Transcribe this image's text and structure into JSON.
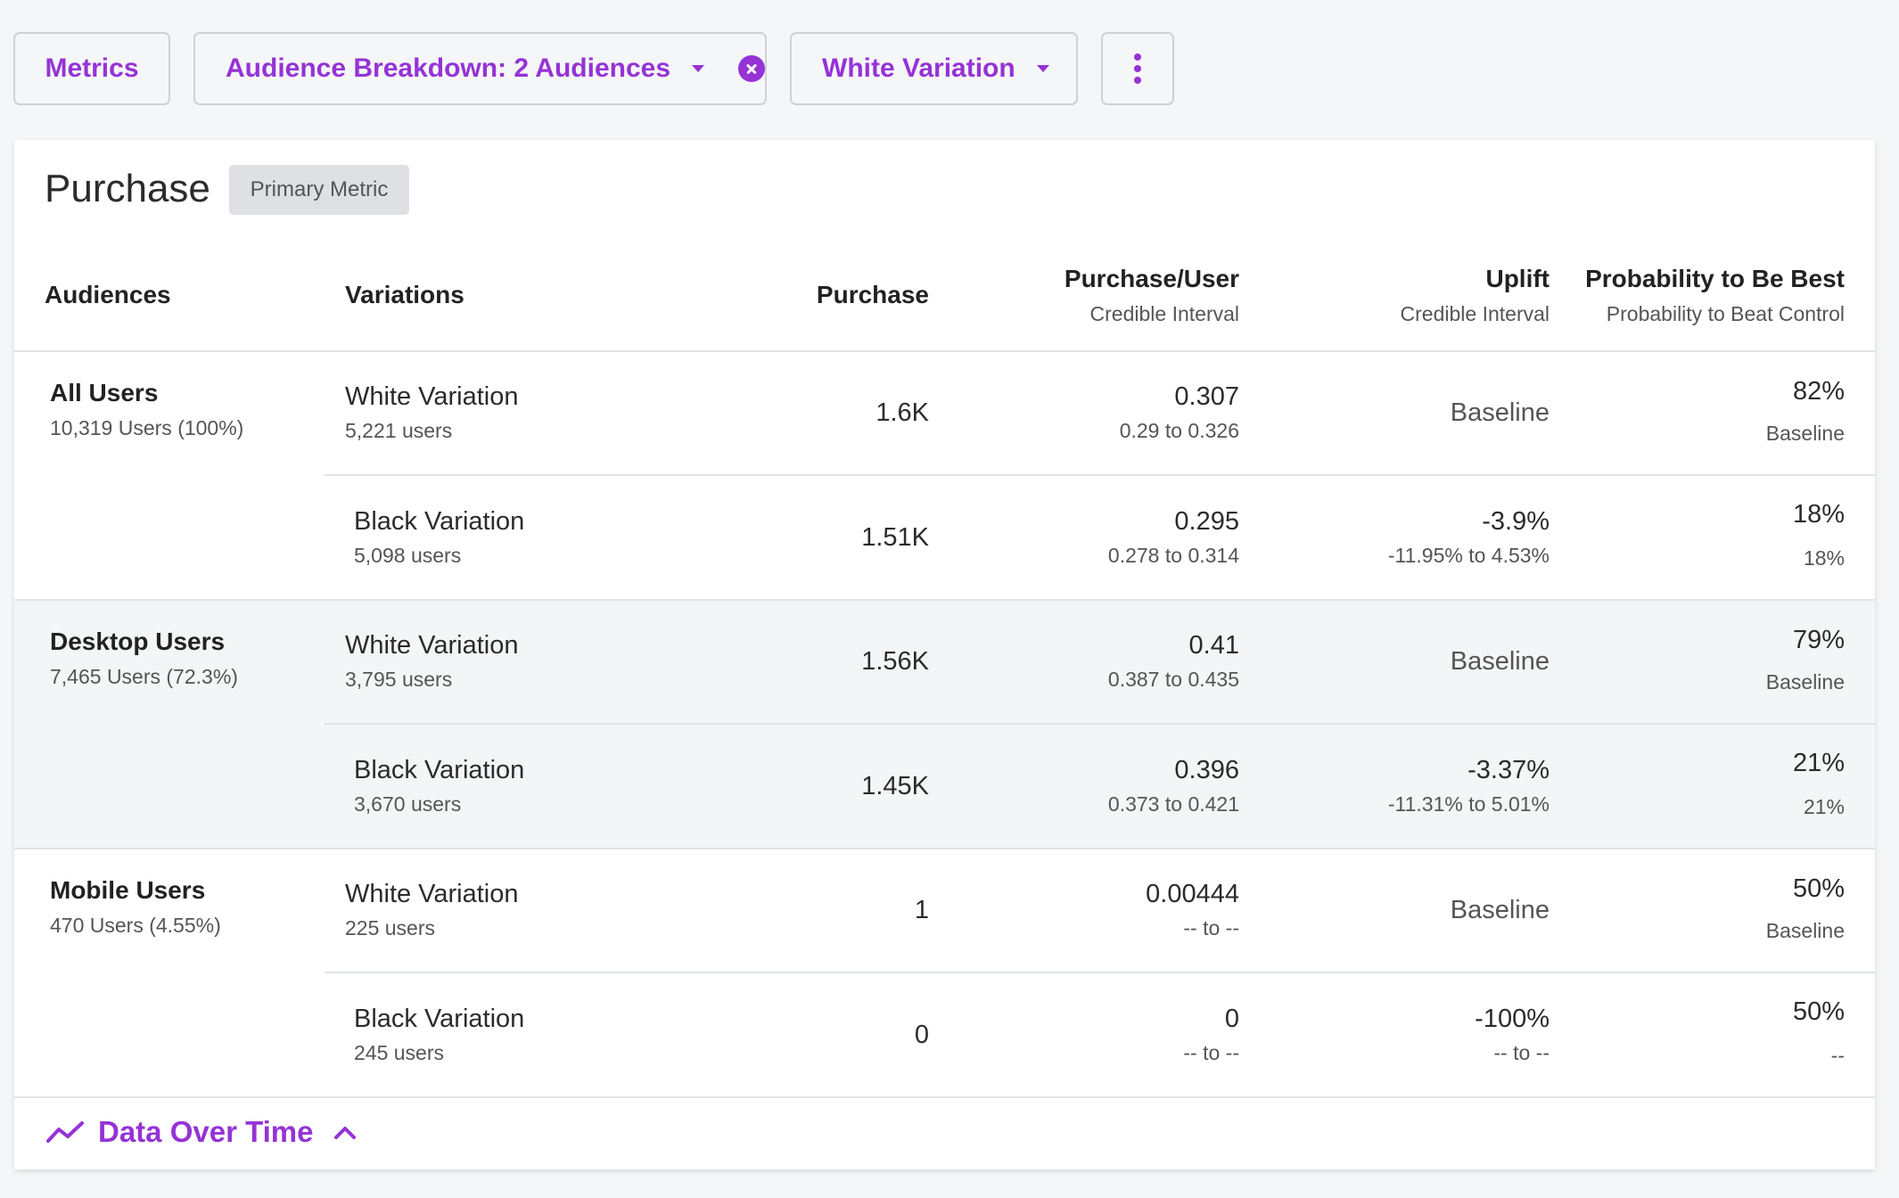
{
  "toolbar": {
    "metrics_label": "Metrics",
    "audience_label": "Audience Breakdown: 2 Audiences",
    "variation_label": "White Variation"
  },
  "card": {
    "title": "Purchase",
    "badge": "Primary Metric"
  },
  "columns": {
    "audiences": "Audiences",
    "variations": "Variations",
    "purchase": "Purchase",
    "purchase_user": "Purchase/User",
    "purchase_user_sub": "Credible Interval",
    "uplift": "Uplift",
    "uplift_sub": "Credible Interval",
    "prob_best": "Probability to Be Best",
    "prob_best_sub": "Probability to Beat Control"
  },
  "audiences": [
    {
      "name": "All Users",
      "count": "10,319 Users (100%)",
      "rows": [
        {
          "variation": "White Variation",
          "users": "5,221 users",
          "purchase": "1.6K",
          "pu": "0.307",
          "pu_ci": "0.29 to 0.326",
          "uplift": "Baseline",
          "uplift_ci": "",
          "prob": "82%",
          "prob_sub": "Baseline"
        },
        {
          "variation": "Black Variation",
          "users": "5,098 users",
          "purchase": "1.51K",
          "pu": "0.295",
          "pu_ci": "0.278 to 0.314",
          "uplift": "-3.9%",
          "uplift_ci": "-11.95% to 4.53%",
          "prob": "18%",
          "prob_sub": "18%"
        }
      ]
    },
    {
      "name": "Desktop Users",
      "count": "7,465 Users (72.3%)",
      "rows": [
        {
          "variation": "White Variation",
          "users": "3,795 users",
          "purchase": "1.56K",
          "pu": "0.41",
          "pu_ci": "0.387 to 0.435",
          "uplift": "Baseline",
          "uplift_ci": "",
          "prob": "79%",
          "prob_sub": "Baseline"
        },
        {
          "variation": "Black Variation",
          "users": "3,670 users",
          "purchase": "1.45K",
          "pu": "0.396",
          "pu_ci": "0.373 to 0.421",
          "uplift": "-3.37%",
          "uplift_ci": "-11.31% to 5.01%",
          "prob": "21%",
          "prob_sub": "21%"
        }
      ]
    },
    {
      "name": "Mobile Users",
      "count": "470 Users (4.55%)",
      "rows": [
        {
          "variation": "White Variation",
          "users": "225 users",
          "purchase": "1",
          "pu": "0.00444",
          "pu_ci": "-- to --",
          "uplift": "Baseline",
          "uplift_ci": "",
          "prob": "50%",
          "prob_sub": "Baseline"
        },
        {
          "variation": "Black Variation",
          "users": "245 users",
          "purchase": "0",
          "pu": "0",
          "pu_ci": "-- to --",
          "uplift": "-100%",
          "uplift_ci": "-- to --",
          "prob": "50%",
          "prob_sub": "--"
        }
      ]
    }
  ],
  "footer": {
    "label": "Data Over Time"
  },
  "colors": {
    "accent": "#9533d6",
    "band": "#f4f5f7",
    "border": "#e2e3e6"
  }
}
